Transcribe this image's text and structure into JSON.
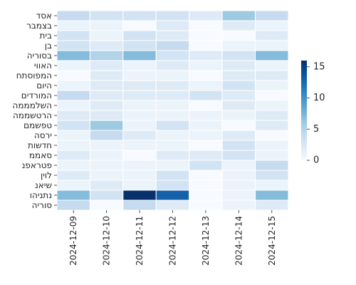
{
  "chart_data": {
    "type": "heatmap",
    "title": "",
    "xlabel": "",
    "ylabel": "",
    "columns": [
      "2024-12-09",
      "2024-12-10",
      "2024-12-11",
      "2024-12-12",
      "2024-12-13",
      "2024-12-14",
      "2024-12-15"
    ],
    "rows": [
      "אסד",
      "בצמבר",
      "בית",
      "בן",
      "בסוריה",
      "האווי",
      "המפוסתח",
      "היום",
      "המורדים",
      "השלמממה",
      "הרטשממה",
      "טפשמם",
      "ירסה",
      "חדשות",
      "סאממ",
      "פטראפנ",
      "לוין",
      "שיאנ",
      "נתניהו",
      "סוריה"
    ],
    "values": [
      [
        4,
        3,
        3,
        3,
        2,
        6,
        4
      ],
      [
        1,
        1,
        0,
        2,
        0,
        2,
        1
      ],
      [
        3,
        1,
        3,
        2,
        0,
        0,
        2
      ],
      [
        3,
        2,
        3,
        4,
        0,
        1,
        1
      ],
      [
        7,
        5,
        7,
        3,
        2,
        3,
        7
      ],
      [
        1,
        2,
        1,
        2,
        1,
        2,
        1
      ],
      [
        0,
        2,
        1,
        1,
        0,
        2,
        2
      ],
      [
        1,
        2,
        2,
        2,
        1,
        3,
        1
      ],
      [
        4,
        2,
        2,
        2,
        3,
        2,
        0
      ],
      [
        1,
        2,
        1,
        1,
        0,
        2,
        1
      ],
      [
        2,
        2,
        1,
        1,
        1,
        1,
        2
      ],
      [
        3,
        6,
        1,
        3,
        1,
        0,
        2
      ],
      [
        1,
        4,
        2,
        1,
        1,
        2,
        0
      ],
      [
        1,
        1,
        1,
        1,
        0,
        3,
        1
      ],
      [
        2,
        1,
        0,
        2,
        2,
        3,
        1
      ],
      [
        1,
        1,
        1,
        1,
        3,
        1,
        4
      ],
      [
        2,
        1,
        1,
        3,
        0,
        1,
        3
      ],
      [
        1,
        2,
        1,
        3,
        0,
        1,
        1
      ],
      [
        7,
        3,
        16,
        13,
        0,
        1,
        7
      ],
      [
        4,
        0,
        4,
        2,
        0,
        1,
        2
      ]
    ],
    "colorbar": {
      "min": 0,
      "max": 16,
      "ticks": [
        0,
        5,
        10,
        15
      ],
      "colormap": "Blues"
    },
    "grid_line_color": "#ffffff"
  }
}
